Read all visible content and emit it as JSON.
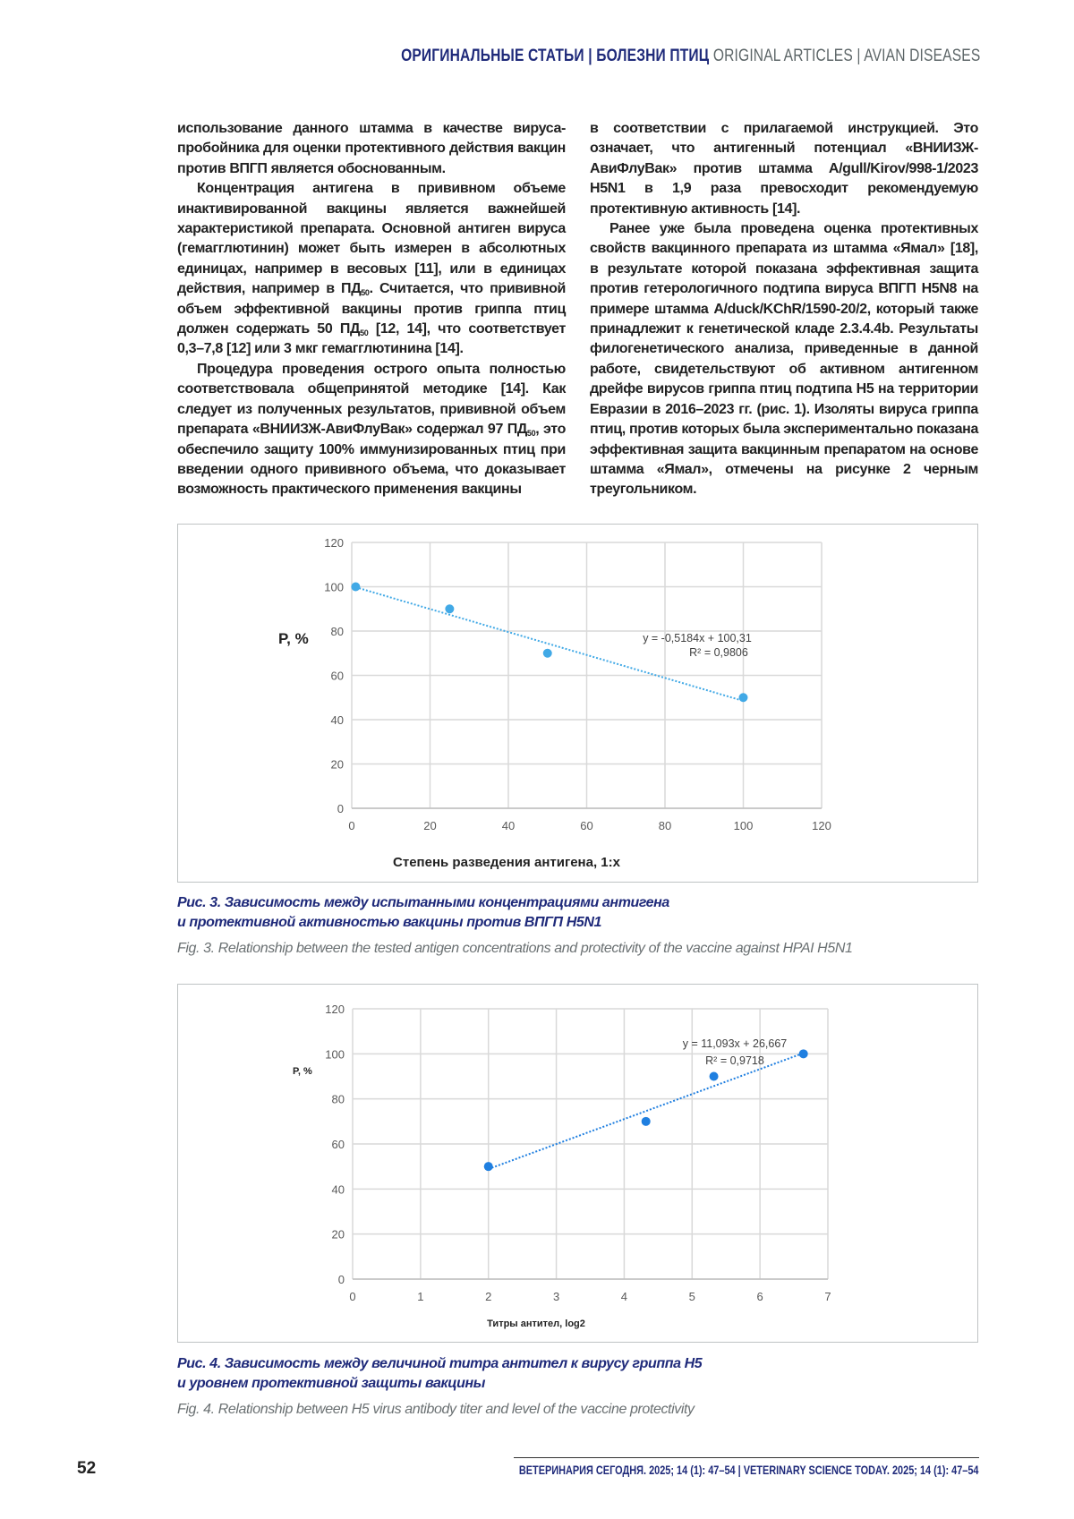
{
  "header": {
    "ru": "ОРИГИНАЛЬНЫЕ СТАТЬИ | БОЛЕЗНИ ПТИЦ",
    "en": "ORIGINAL ARTICLES | AVIAN DISEASES"
  },
  "columns": {
    "left": [
      {
        "cont": true,
        "parts": [
          {
            "t": "использование данного штамма в качестве вируса-пробойника для оценки протективного действия вакцин против ВПГП является обоснованным."
          }
        ]
      },
      {
        "cont": false,
        "parts": [
          {
            "t": "Концентрация антигена в прививном объеме инактивированной вакцины является важнейшей характеристикой препарата. Основной антиген вируса (гемагглютинин) может быть измерен в абсолютных единицах, например в весовых [11], или в единицах действия, например в ПД"
          },
          {
            "t": "50",
            "sub": true
          },
          {
            "t": ". Считается, что прививной объем эффективной вакцины против гриппа птиц должен содержать 50 ПД"
          },
          {
            "t": "50",
            "sub": true
          },
          {
            "t": " [12, 14], что соответствует 0,3–7,8 [12] или 3 мкг гемагглютинина [14]."
          }
        ]
      },
      {
        "cont": false,
        "parts": [
          {
            "t": "Процедура проведения острого опыта полностью соответствовала общепринятой методике [14]. Как следует из полученных результатов, прививной объем препарата «ВНИИЗЖ-АвиФлуВак» содержал 97 ПД"
          },
          {
            "t": "50",
            "sub": true
          },
          {
            "t": ", это обеспечило защиту 100% иммунизированных птиц при введении одного прививного объема, что доказывает возможность практического применения вакцины"
          }
        ]
      }
    ],
    "right": [
      {
        "cont": true,
        "parts": [
          {
            "t": "в соответствии с прилагаемой инструкцией. Это означает, что антигенный потенциал «ВНИИЗЖ-АвиФлуВак» против штамма A/gull/Kirov/998-1/2023 H5N1 в 1,9 раза превосходит рекомендуемую протективную активность [14]."
          }
        ]
      },
      {
        "cont": false,
        "parts": [
          {
            "t": "Ранее уже была проведена оценка протективных свойств вакцинного препарата из штамма «Ямал» [18], в результате которой показана эффективная защита против гетерологичного подтипа вируса ВПГП H5N8 на примере штамма A/duck/KChR/1590-20/2, который также принадлежит к генетической кладе 2.3.4.4b. Результаты филогенетического анализа, приведенные в данной работе, свидетельствуют об активном антигенном дрейфе вирусов гриппа птиц подтипа H5 на территории Евразии в 2016–2023 гг. (рис. 1). Изоляты вируса гриппа птиц, против которых была экспериментально показана эффективная защита вакцинным препаратом на основе штамма «Ямал», отмечены на рисунке 2 черным треугольником."
          }
        ]
      }
    ]
  },
  "chart_data": [
    {
      "type": "scatter",
      "title": "",
      "xlabel": "Степень разведения антигена, 1:x",
      "ylabel": "P, %",
      "x": [
        1,
        25,
        50,
        100
      ],
      "y": [
        100,
        90,
        70,
        50
      ],
      "xlim": [
        0,
        120
      ],
      "ylim": [
        0,
        120
      ],
      "xticks": [
        0,
        20,
        40,
        60,
        80,
        100,
        120
      ],
      "yticks": [
        0,
        20,
        40,
        60,
        80,
        100,
        120
      ],
      "grid": true,
      "trendline": {
        "slope": -0.5184,
        "intercept": 100.31,
        "x_range": [
          1,
          100
        ],
        "equation": "y = -0,5184x + 100,31",
        "r2": "R² = 0,9806"
      },
      "color": "#41a9e6"
    },
    {
      "type": "scatter",
      "title": "",
      "xlabel": "Титры антител, log2",
      "ylabel": "P, %",
      "x": [
        2,
        4.32,
        5.32,
        6.64
      ],
      "y": [
        50,
        70,
        90,
        100
      ],
      "xlim": [
        0,
        7
      ],
      "ylim": [
        0,
        120
      ],
      "xticks": [
        0,
        1,
        2,
        3,
        4,
        5,
        6,
        7
      ],
      "yticks": [
        0,
        20,
        40,
        60,
        80,
        100,
        120
      ],
      "grid": true,
      "trendline": {
        "slope": 11.093,
        "intercept": 26.667,
        "x_range": [
          2,
          6.64
        ],
        "equation": "y = 11,093x + 26,667",
        "r2": "R² = 0,9718"
      },
      "color": "#1f7fe0"
    }
  ],
  "captions": {
    "fig3": {
      "ru_line1": "Рис. 3. Зависимость между испытанными концентрациями антигена",
      "ru_line2": "и протективной активностью вакцины против ВПГП H5N1",
      "en": "Fig. 3. Relationship between the tested antigen concentrations and protectivity of the vaccine against HPAI H5N1"
    },
    "fig4": {
      "ru_line1": "Рис. 4. Зависимость между величиной титра антител к вирусу гриппа H5",
      "ru_line2": "и уровнем протективной защиты вакцины",
      "en": "Fig. 4. Relationship between H5 virus antibody titer and level of the vaccine protectivity"
    }
  },
  "footer": {
    "page_number": "52",
    "citation": "ВЕТЕРИНАРИЯ СЕГОДНЯ. 2025; 14 (1): 47–54 | VETERINARY SCIENCE TODAY. 2025; 14 (1): 47–54"
  }
}
